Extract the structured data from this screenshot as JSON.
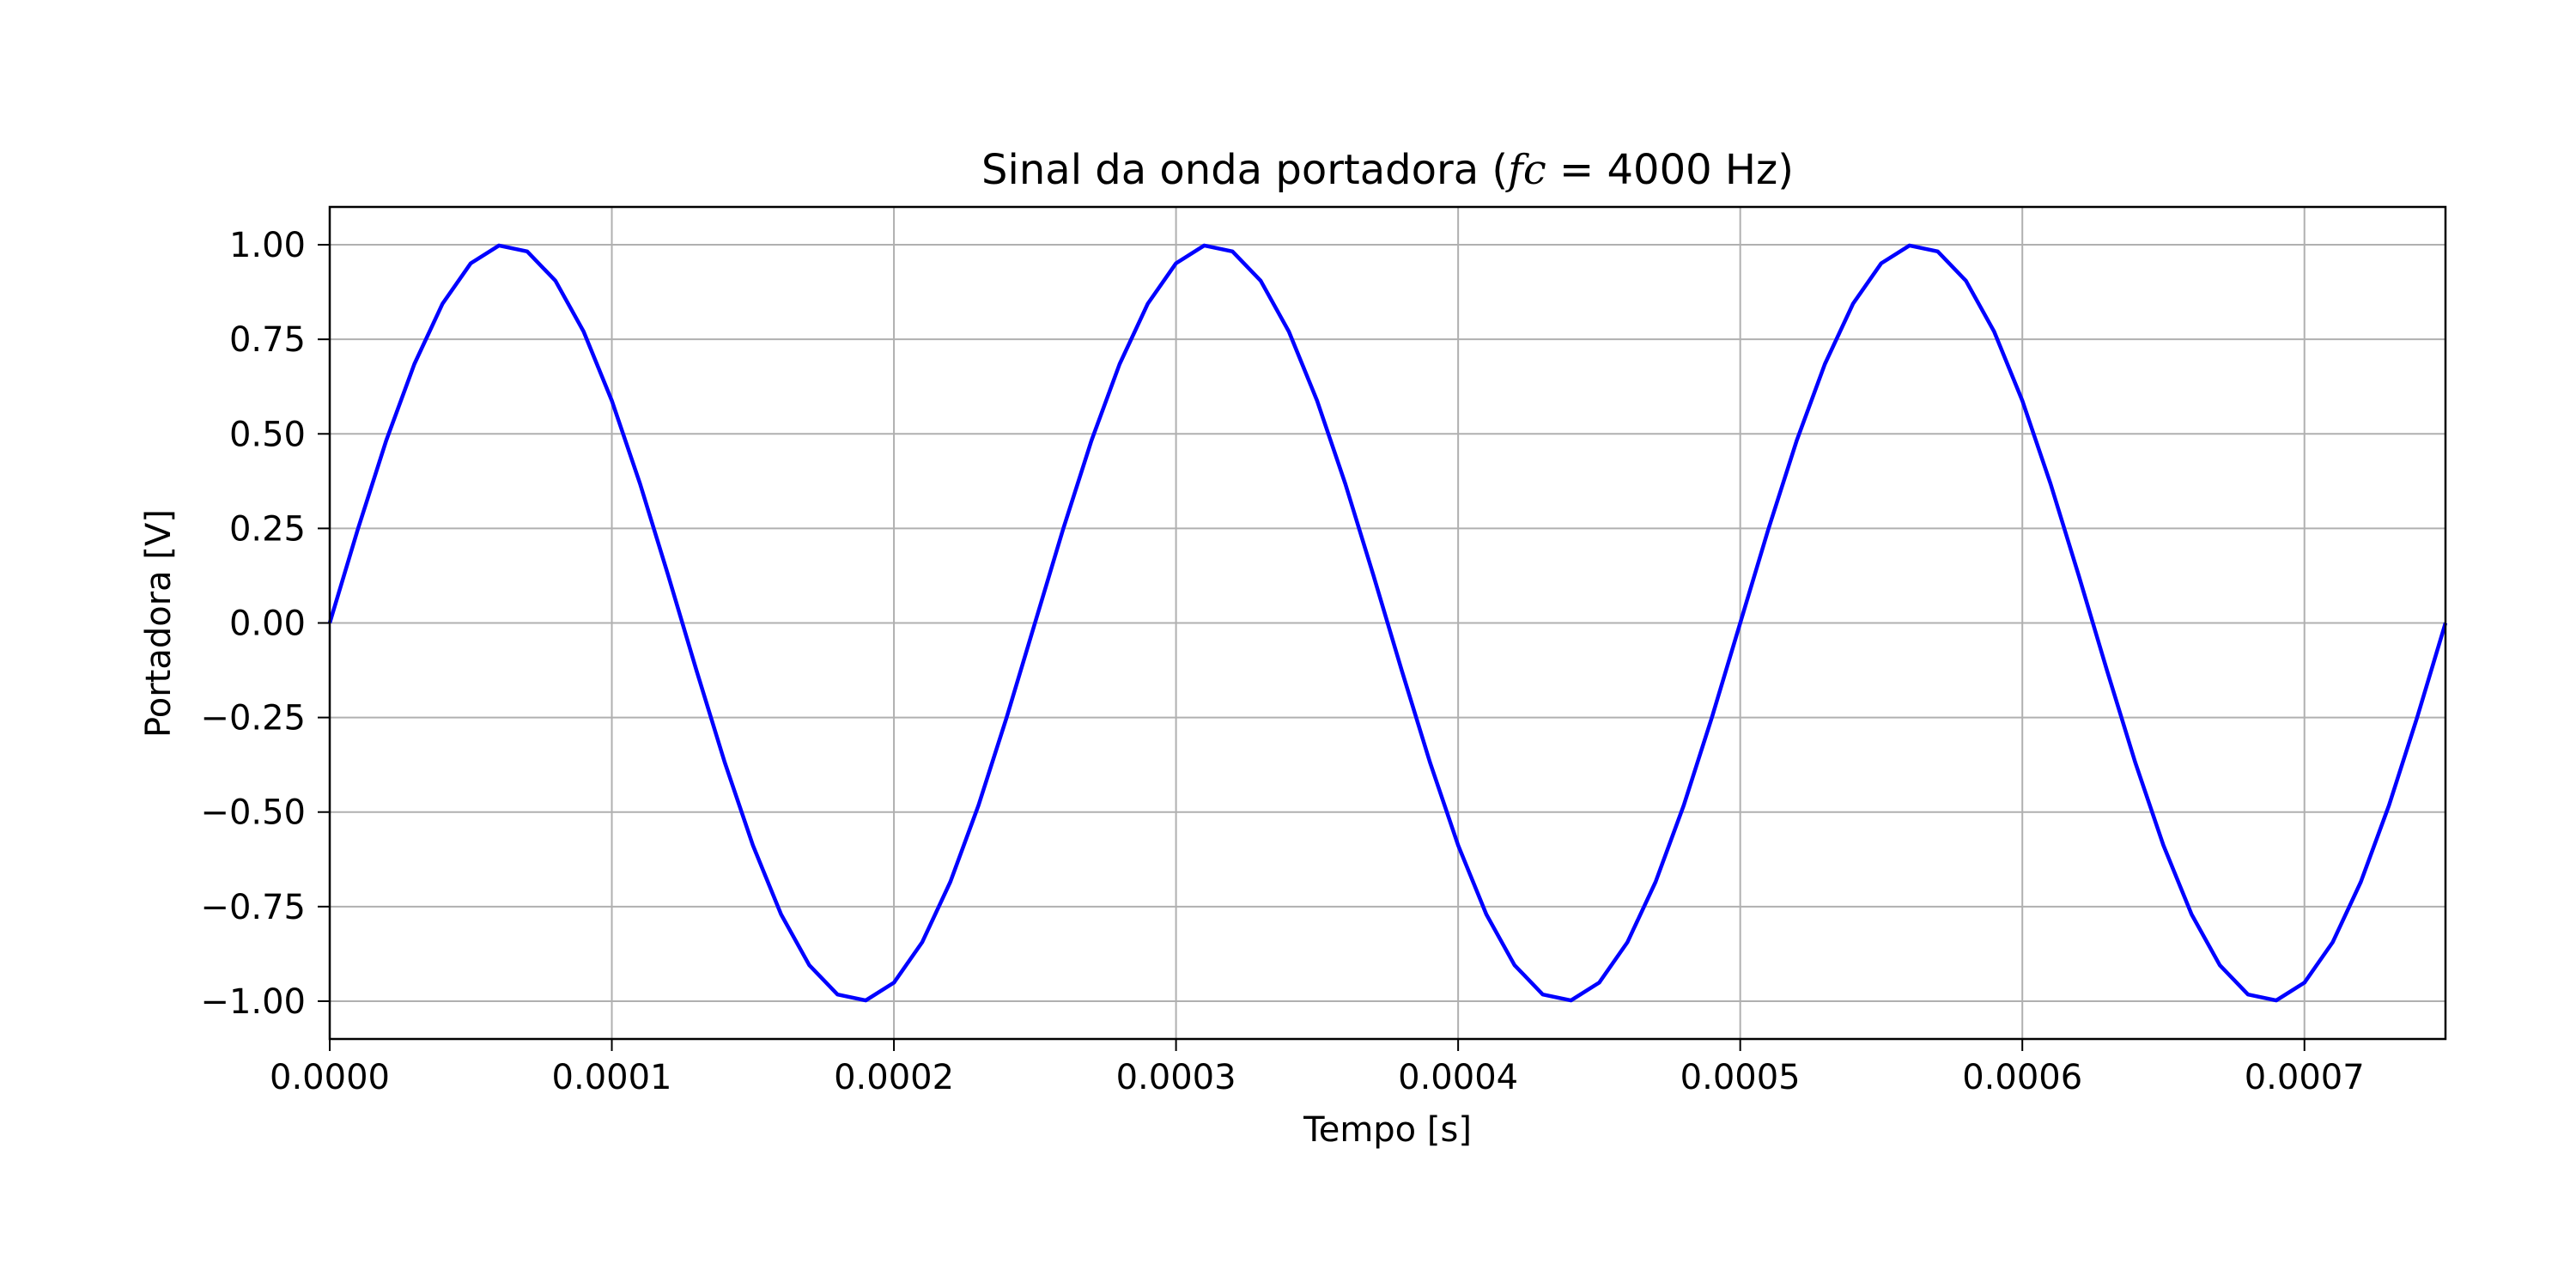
{
  "chart_data": {
    "type": "line",
    "title_prefix": "Sinal da onda portadora (",
    "title_math": "fc",
    "title_suffix": " = 4000 Hz)",
    "xlabel": "Tempo [s]",
    "ylabel": "Portadora [V]",
    "xlim": [
      0.0,
      0.00075
    ],
    "ylim": [
      -1.1,
      1.1
    ],
    "xticks": [
      0.0,
      0.0001,
      0.0002,
      0.0003,
      0.0004,
      0.0005,
      0.0006,
      0.0007
    ],
    "xtick_labels": [
      "0.0000",
      "0.0001",
      "0.0002",
      "0.0003",
      "0.0004",
      "0.0005",
      "0.0006",
      "0.0007"
    ],
    "yticks": [
      1.0,
      0.75,
      0.5,
      0.25,
      0.0,
      -0.25,
      -0.5,
      -0.75,
      -1.0
    ],
    "ytick_labels": [
      "1.00",
      "0.75",
      "0.50",
      "0.25",
      "0.00",
      "−0.25",
      "−0.50",
      "−0.75",
      "−1.00"
    ],
    "grid": true,
    "series": [
      {
        "color": "#0000ff",
        "frequency_hz": 4000,
        "sample_interval_s": 1e-05,
        "x_start": 0.0,
        "x_end": 0.00075
      }
    ]
  }
}
